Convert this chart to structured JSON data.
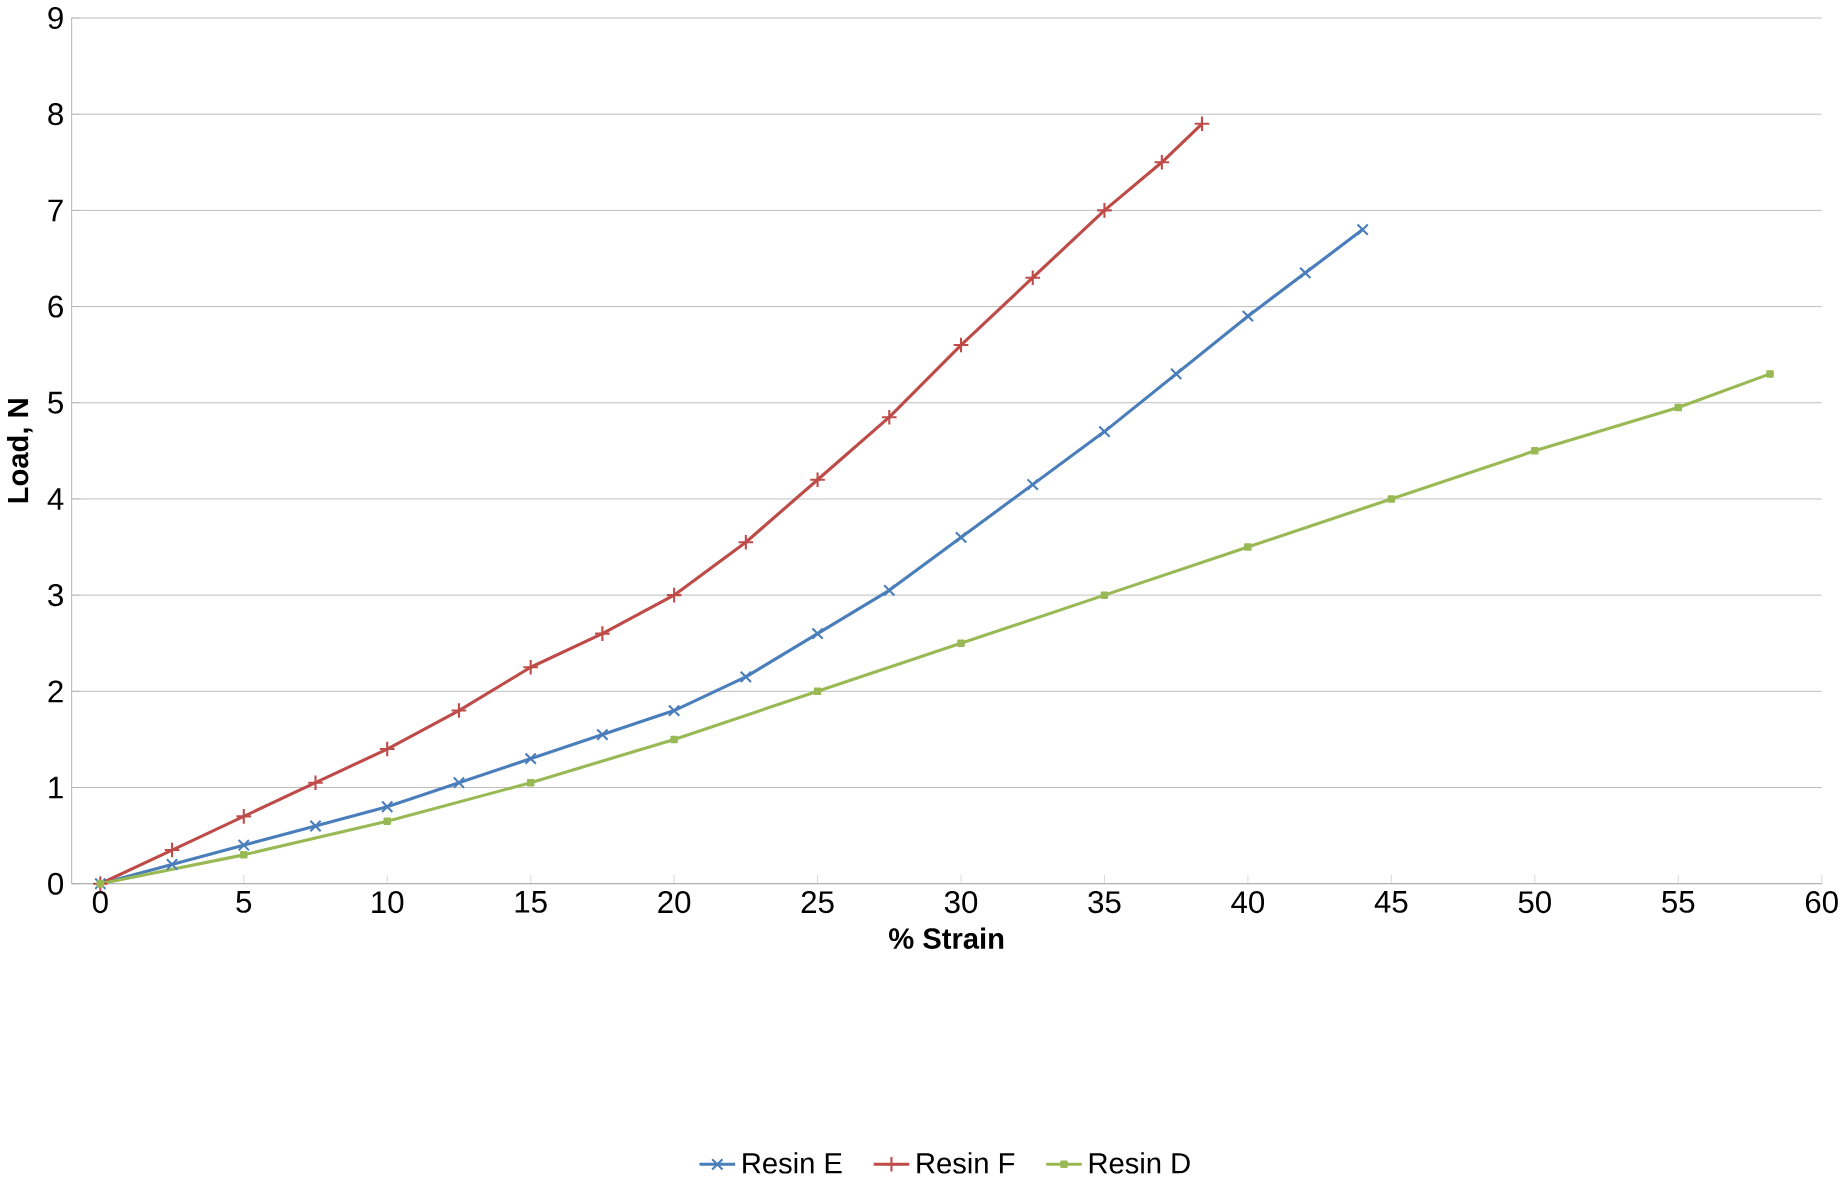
{
  "chart_data": {
    "type": "line",
    "xlabel": "% Strain",
    "ylabel": "Load, N",
    "xlim": [
      -1,
      60
    ],
    "xticks": [
      0,
      5,
      10,
      15,
      20,
      25,
      30,
      35,
      40,
      45,
      50,
      55,
      60
    ],
    "ylim": [
      0,
      9
    ],
    "yticks": [
      0,
      1,
      2,
      3,
      4,
      5,
      6,
      7,
      8,
      9
    ],
    "grid": "y",
    "legend": "bottom",
    "series": [
      {
        "name": "Resin E",
        "color": "#4a7ebb",
        "marker": "cross",
        "x": [
          0,
          2.5,
          5,
          7.5,
          10,
          12.5,
          15,
          17.5,
          20,
          22.5,
          25,
          27.5,
          30,
          32.5,
          35,
          37.5,
          40,
          42,
          44
        ],
        "values": [
          0,
          0.2,
          0.4,
          0.6,
          0.8,
          1.05,
          1.3,
          1.55,
          1.8,
          2.15,
          2.6,
          3.05,
          3.6,
          4.15,
          4.7,
          5.3,
          5.9,
          6.35,
          6.8
        ]
      },
      {
        "name": "Resin F",
        "color": "#be4b48",
        "marker": "plus",
        "x": [
          0,
          2.5,
          5,
          7.5,
          10,
          12.5,
          15,
          17.5,
          20,
          22.5,
          25,
          27.5,
          30,
          32.5,
          35,
          37,
          38.4
        ],
        "values": [
          0,
          0.35,
          0.7,
          1.05,
          1.4,
          1.8,
          2.25,
          2.6,
          3.0,
          3.55,
          4.2,
          4.85,
          5.6,
          6.3,
          7.0,
          7.5,
          7.9
        ]
      },
      {
        "name": "Resin D",
        "color": "#98b954",
        "marker": "square",
        "x": [
          0,
          5,
          10,
          15,
          20,
          25,
          30,
          35,
          40,
          45,
          50,
          55,
          58.2
        ],
        "values": [
          0,
          0.3,
          0.65,
          1.05,
          1.5,
          2.0,
          2.5,
          3.0,
          3.5,
          4.0,
          4.5,
          4.95,
          5.3
        ]
      }
    ]
  }
}
